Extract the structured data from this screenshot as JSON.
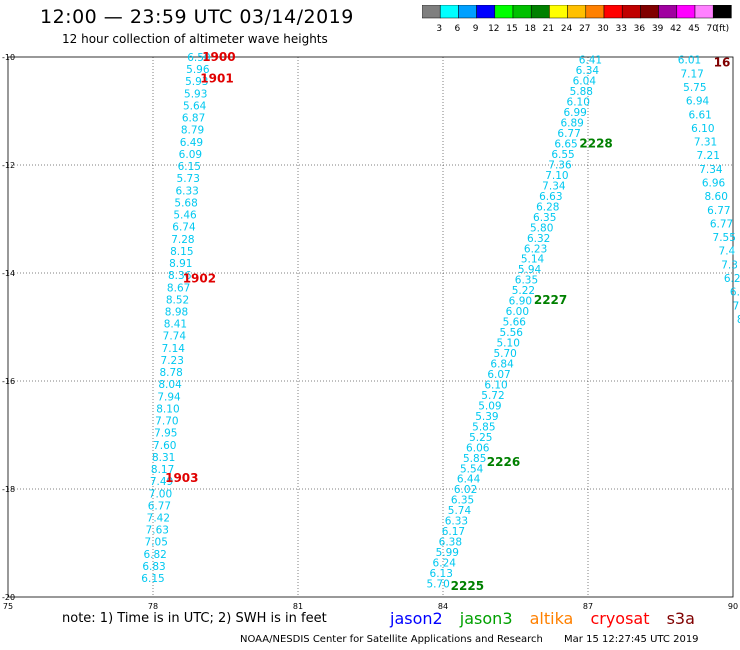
{
  "header": {
    "title": "12:00 — 23:59 UTC 03/14/2019",
    "subtitle": "12 hour collection of altimeter wave heights"
  },
  "colorbar": {
    "colors": [
      "#7f7f7f",
      "#00ffff",
      "#00a0ff",
      "#0000ff",
      "#00ff00",
      "#00c000",
      "#008000",
      "#ffff00",
      "#ffc000",
      "#ff8000",
      "#ff0000",
      "#c00000",
      "#800000",
      "#a000a0",
      "#ff00ff",
      "#ff80ff",
      "#000000"
    ],
    "labels": [
      "3",
      "6",
      "9",
      "12",
      "15",
      "18",
      "21",
      "24",
      "27",
      "30",
      "33",
      "36",
      "39",
      "42",
      "45",
      "70",
      "(ft)"
    ]
  },
  "footer": {
    "note": "note:  1) Time is in UTC;  2) SWH is in feet",
    "credits": "NOAA/NESDIS Center for Satellite Applications and Research",
    "timestamp": "Mar 15 12:27:45 UTC 2019"
  },
  "legend": [
    {
      "name": "jason2",
      "color": "#0000ff"
    },
    {
      "name": "jason3",
      "color": "#00a000"
    },
    {
      "name": "altika",
      "color": "#ff8000"
    },
    {
      "name": "cryosat",
      "color": "#ff0000"
    },
    {
      "name": "s3a",
      "color": "#800000"
    }
  ],
  "chart_data": {
    "type": "scatter",
    "xlim": [
      75,
      90
    ],
    "ylim": [
      -20,
      -10
    ],
    "xticks": [
      "75",
      "78",
      "81",
      "84",
      "87",
      "90"
    ],
    "yticks": [
      "-10",
      "-12",
      "-14",
      "-16",
      "-18",
      "-20"
    ],
    "grid": true,
    "point_color": "#00c8f0",
    "tracks": [
      {
        "x0": 78.95,
        "y0": -10.0,
        "x1": 78.0,
        "y1": -19.65,
        "values": [
          "6.50",
          "5.96",
          "5.93",
          "5.93",
          "5.64",
          "6.87",
          "8.79",
          "6.49",
          "6.09",
          "6.15",
          "5.73",
          "6.33",
          "5.68",
          "5.46",
          "6.74",
          "7.28",
          "8.15",
          "8.91",
          "8.36",
          "8.67",
          "8.52",
          "8.98",
          "8.41",
          "7.74",
          "7.14",
          "7.23",
          "8.78",
          "8.04",
          "7.94",
          "8.10",
          "7.70",
          "7.95",
          "7.60",
          "8.31",
          "8.17",
          "7.49",
          "7.00",
          "6.77",
          "7.42",
          "7.63",
          "7.05",
          "6.82",
          "6.83",
          "6.15"
        ],
        "times": [
          {
            "label": "1900",
            "y": -10.0
          },
          {
            "label": "1901",
            "y": -10.4
          },
          {
            "label": "1902",
            "y": -14.1
          },
          {
            "label": "1903",
            "y": -17.8
          }
        ],
        "time_color": "#e00000",
        "time_dx": 20
      },
      {
        "x0": 87.05,
        "y0": -10.05,
        "x1": 83.9,
        "y1": -19.75,
        "values": [
          "6.41",
          "6.34",
          "6.04",
          "5.88",
          "6.10",
          "6.99",
          "6.89",
          "6.77",
          "6.65",
          "6.55",
          "7.36",
          "7.10",
          "7.34",
          "6.63",
          "6.28",
          "6.35",
          "5.80",
          "6.32",
          "6.23",
          "5.14",
          "5.94",
          "6.35",
          "5.22",
          "6.90",
          "6.00",
          "5.66",
          "5.56",
          "5.10",
          "5.70",
          "6.84",
          "6.07",
          "6.10",
          "5.72",
          "5.09",
          "5.39",
          "5.85",
          "5.25",
          "6.06",
          "5.85",
          "5.54",
          "6.44",
          "6.02",
          "6.35",
          "5.74",
          "6.33",
          "6.17",
          "6.38",
          "5.99",
          "6.24",
          "6.13",
          "5.70"
        ],
        "times": [
          {
            "label": "2228",
            "y": -11.6
          },
          {
            "label": "2227",
            "y": -14.5
          },
          {
            "label": "2226",
            "y": -17.5
          },
          {
            "label": "2225",
            "y": -19.8
          }
        ],
        "time_color": "#008000",
        "time_dx": 30
      },
      {
        "x0": 89.1,
        "y0": -10.05,
        "x1": 90.15,
        "y1": -14.85,
        "values": [
          "6.01",
          "7.17",
          "5.75",
          "6.94",
          "6.61",
          "6.10",
          "7.31",
          "7.21",
          "7.34",
          "6.96",
          "8.60",
          "6.77",
          "6.77",
          "7.55",
          "7.4",
          "7.3",
          "6.2",
          "6.",
          "7.",
          "8"
        ],
        "times": [
          {
            "label": "16",
            "y": -10.1
          }
        ],
        "time_color": "#800000",
        "time_dx": 32
      }
    ]
  }
}
